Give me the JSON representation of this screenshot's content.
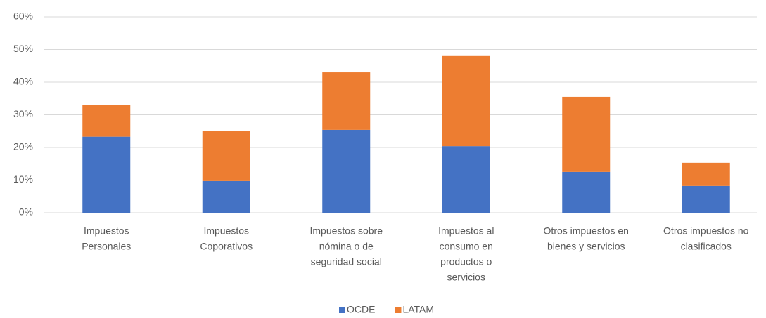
{
  "chart_data": {
    "type": "stacked_bar",
    "categories": [
      [
        "Impuestos",
        "Personales"
      ],
      [
        "Impuestos",
        "Coporativos"
      ],
      [
        "Impuestos sobre",
        "nómina o de",
        "seguridad social"
      ],
      [
        "Impuestos al",
        "consumo en",
        "productos o",
        "servicios"
      ],
      [
        "Otros impuestos en",
        "bienes y servicios"
      ],
      [
        "Otros impuestos no",
        "clasificados"
      ]
    ],
    "series": [
      {
        "name": "OCDE",
        "color": "#4472c4",
        "values": [
          23.3,
          9.7,
          25.4,
          20.4,
          12.5,
          8.2
        ]
      },
      {
        "name": "LATAM",
        "color": "#ed7d31",
        "values": [
          9.7,
          15.3,
          17.6,
          27.6,
          23.0,
          7.1
        ]
      }
    ],
    "ylim": [
      0,
      60
    ],
    "yticks": [
      {
        "value": 0,
        "label": "0%"
      },
      {
        "value": 10,
        "label": "10%"
      },
      {
        "value": 20,
        "label": "20%"
      },
      {
        "value": 30,
        "label": "30%"
      },
      {
        "value": 40,
        "label": "40%"
      },
      {
        "value": 50,
        "label": "50%"
      },
      {
        "value": 60,
        "label": "60%"
      }
    ],
    "grid": true,
    "legend": "bottom"
  }
}
